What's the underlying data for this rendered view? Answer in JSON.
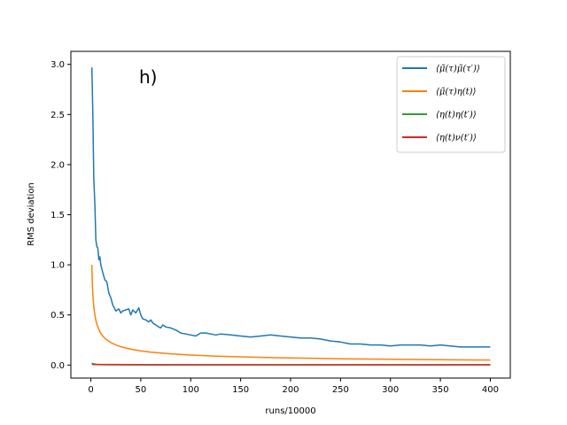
{
  "chart_data": {
    "type": "line",
    "title": "",
    "panel_label": "h)",
    "xlabel": "runs/10000",
    "ylabel": "RMS deviation",
    "xlim": [
      -20,
      420
    ],
    "ylim": [
      -0.13,
      3.13
    ],
    "xticks": [
      {
        "value": 0,
        "label": "0"
      },
      {
        "value": 50,
        "label": "50"
      },
      {
        "value": 100,
        "label": "100"
      },
      {
        "value": 150,
        "label": "150"
      },
      {
        "value": 200,
        "label": "200"
      },
      {
        "value": 250,
        "label": "250"
      },
      {
        "value": 300,
        "label": "300"
      },
      {
        "value": 350,
        "label": "350"
      },
      {
        "value": 400,
        "label": "400"
      }
    ],
    "yticks": [
      {
        "value": 0.0,
        "label": "0.0"
      },
      {
        "value": 0.5,
        "label": "0.5"
      },
      {
        "value": 1.0,
        "label": "1.0"
      },
      {
        "value": 1.5,
        "label": "1.5"
      },
      {
        "value": 2.0,
        "label": "2.0"
      },
      {
        "value": 2.5,
        "label": "2.5"
      },
      {
        "value": 3.0,
        "label": "3.0"
      }
    ],
    "grid": false,
    "legend": "top-right",
    "series": [
      {
        "name": "⟨μ̃(τ)μ̃(τ′)⟩",
        "color": "#1f77b4",
        "x": [
          1,
          2,
          3,
          4,
          5,
          6,
          7,
          8,
          9,
          10,
          12,
          14,
          16,
          18,
          20,
          22,
          25,
          28,
          30,
          32,
          35,
          38,
          40,
          42,
          45,
          48,
          50,
          52,
          55,
          58,
          60,
          62,
          65,
          68,
          70,
          72,
          75,
          80,
          85,
          90,
          95,
          100,
          105,
          110,
          115,
          120,
          125,
          130,
          140,
          150,
          160,
          170,
          180,
          190,
          200,
          210,
          220,
          230,
          240,
          250,
          260,
          270,
          280,
          290,
          300,
          310,
          320,
          330,
          340,
          350,
          360,
          370,
          380,
          390,
          400
        ],
        "y": [
          2.97,
          2.5,
          1.85,
          1.6,
          1.25,
          1.18,
          1.17,
          1.05,
          1.08,
          1.0,
          0.92,
          0.85,
          0.83,
          0.72,
          0.67,
          0.6,
          0.54,
          0.56,
          0.52,
          0.54,
          0.55,
          0.56,
          0.5,
          0.55,
          0.52,
          0.57,
          0.5,
          0.46,
          0.45,
          0.43,
          0.45,
          0.42,
          0.4,
          0.38,
          0.37,
          0.4,
          0.38,
          0.37,
          0.35,
          0.32,
          0.31,
          0.3,
          0.29,
          0.32,
          0.32,
          0.31,
          0.3,
          0.31,
          0.3,
          0.29,
          0.28,
          0.29,
          0.3,
          0.29,
          0.28,
          0.27,
          0.27,
          0.26,
          0.24,
          0.23,
          0.21,
          0.21,
          0.2,
          0.2,
          0.19,
          0.2,
          0.2,
          0.2,
          0.19,
          0.2,
          0.19,
          0.18,
          0.18,
          0.18,
          0.18
        ]
      },
      {
        "name": "⟨μ̃(τ)η(t)⟩",
        "color": "#ff7f0e",
        "x": [
          1,
          1.5,
          2,
          3,
          4,
          5,
          6,
          8,
          10,
          12,
          15,
          20,
          25,
          30,
          40,
          50,
          60,
          80,
          100,
          125,
          150,
          175,
          200,
          250,
          300,
          350,
          400
        ],
        "y": [
          1.0,
          0.816,
          0.707,
          0.577,
          0.5,
          0.447,
          0.408,
          0.354,
          0.316,
          0.289,
          0.258,
          0.224,
          0.2,
          0.183,
          0.158,
          0.141,
          0.129,
          0.112,
          0.1,
          0.089,
          0.082,
          0.076,
          0.071,
          0.063,
          0.058,
          0.053,
          0.05
        ]
      },
      {
        "name": "⟨η(t)η(t′)⟩",
        "color": "#2ca02c",
        "x": [
          1,
          2,
          5,
          10,
          50,
          100,
          200,
          300,
          400
        ],
        "y": [
          0.02,
          0.012,
          0.008,
          0.006,
          0.004,
          0.003,
          0.003,
          0.003,
          0.003
        ]
      },
      {
        "name": "⟨η(t)ν(t′)⟩",
        "color": "#d62728",
        "x": [
          1,
          2,
          5,
          10,
          50,
          100,
          200,
          300,
          400
        ],
        "y": [
          0.01,
          0.006,
          0.004,
          0.003,
          0.002,
          0.002,
          0.002,
          0.002,
          0.002
        ]
      }
    ]
  }
}
